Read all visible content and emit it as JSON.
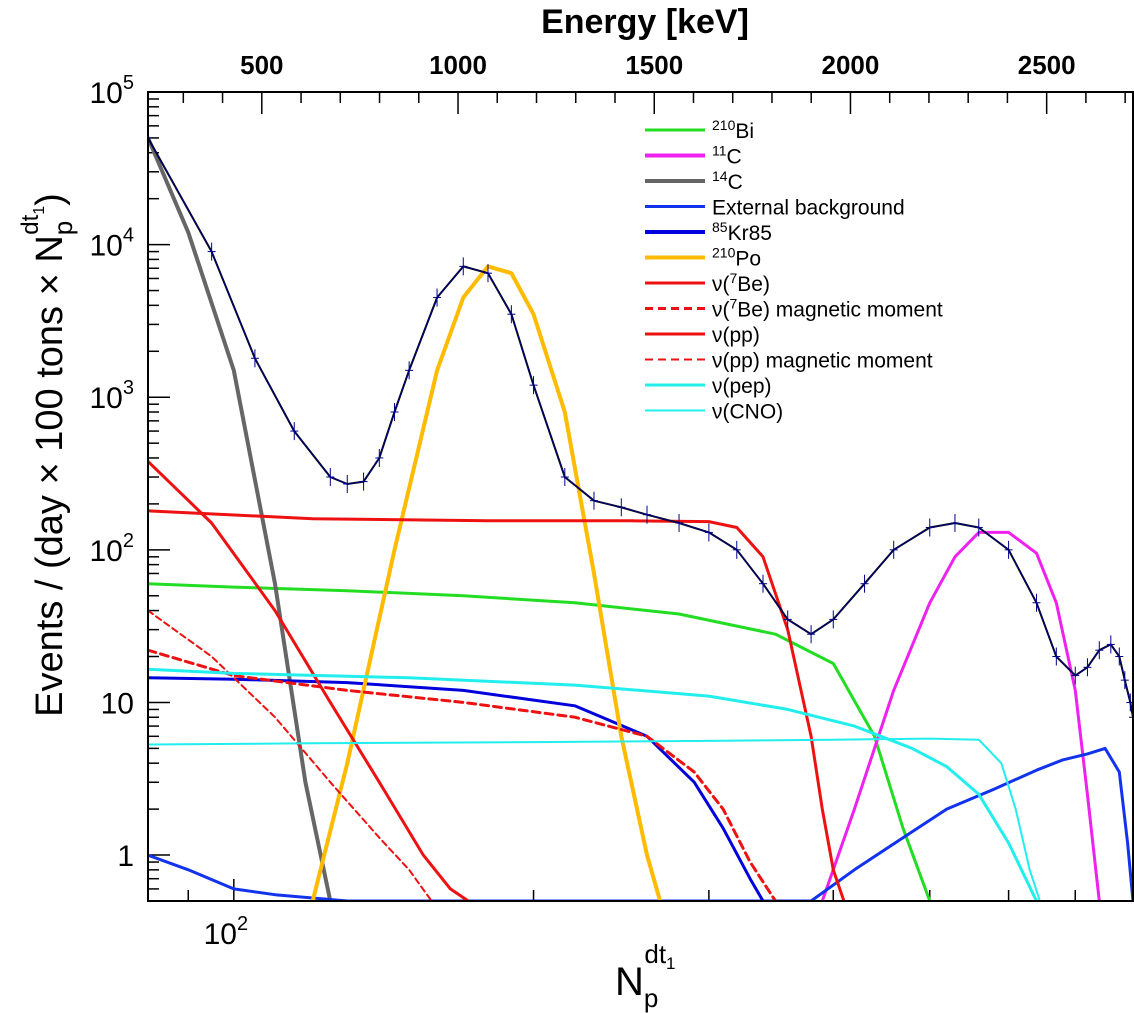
{
  "chart_data": {
    "type": "line",
    "title": "",
    "top_axis": {
      "label": "Energy [keV]",
      "ticks": [
        "500",
        "1000",
        "1500",
        "2000",
        "2500"
      ],
      "tick_values": [
        500,
        1000,
        1500,
        2000,
        2500
      ]
    },
    "xlabel": {
      "base": "N",
      "sub": "p",
      "sup": "dt",
      "supsub": "1"
    },
    "ylabel": {
      "main": "Events / (day × 100 tons × N",
      "sub": "p",
      "sup": "dt",
      "supsub": "1",
      "close": ")"
    },
    "x_scale": "log",
    "y_scale": "log",
    "xlim": [
      82,
      800
    ],
    "ylim": [
      0.5,
      100000
    ],
    "x_tick_labels": [
      {
        "base": "10",
        "exp": "2",
        "value": 100
      }
    ],
    "y_tick_labels": [
      {
        "text": "1",
        "value": 1
      },
      {
        "text": "10",
        "value": 10
      },
      {
        "base": "10",
        "exp": "2",
        "value": 100
      },
      {
        "base": "10",
        "exp": "3",
        "value": 1000
      },
      {
        "base": "10",
        "exp": "4",
        "value": 10000
      },
      {
        "base": "10",
        "exp": "5",
        "value": 100000
      }
    ],
    "legend_position": "top-right",
    "legend": [
      {
        "sup": "210",
        "text": "Bi",
        "color": "#22dd22",
        "style": "solid",
        "width": 3
      },
      {
        "sup": "11",
        "text": "C",
        "color": "#ee22ee",
        "style": "solid",
        "width": 4
      },
      {
        "sup": "14",
        "text": "C",
        "color": "#666666",
        "style": "solid",
        "width": 4
      },
      {
        "sup": "",
        "text": "External background",
        "color": "#1133ee",
        "style": "solid",
        "width": 3
      },
      {
        "sup": "85",
        "text": "Kr85",
        "color": "#0000dd",
        "style": "solid",
        "width": 4
      },
      {
        "sup": "210",
        "text": "Po",
        "color": "#ffbb00",
        "style": "solid",
        "width": 4
      },
      {
        "pre": "ν(",
        "sup": "7",
        "text": "Be)",
        "color": "#ee1111",
        "style": "solid",
        "width": 3
      },
      {
        "pre": "ν(",
        "sup": "7",
        "text": "Be) magnetic moment",
        "color": "#ee1111",
        "style": "dashed",
        "width": 3
      },
      {
        "pre": "",
        "sup": "",
        "text": "ν(pp)",
        "color": "#ee1111",
        "style": "solid",
        "width": 3
      },
      {
        "pre": "",
        "sup": "",
        "text": "ν(pp) magnetic moment",
        "color": "#ee1111",
        "style": "dashed",
        "width": 2
      },
      {
        "pre": "",
        "sup": "",
        "text": "ν(pep)",
        "color": "#22eeee",
        "style": "solid",
        "width": 3
      },
      {
        "pre": "",
        "sup": "",
        "text": "ν(CNO)",
        "color": "#22eeee",
        "style": "solid",
        "width": 2
      }
    ],
    "series": [
      {
        "name": "210Bi",
        "color": "#22dd22",
        "width": 3,
        "dash": "",
        "x": [
          82,
          100,
          130,
          170,
          220,
          280,
          350,
          400,
          440,
          470,
          500
        ],
        "y": [
          60,
          57,
          54,
          50,
          45,
          38,
          28,
          18,
          6,
          1.5,
          0.5
        ]
      },
      {
        "name": "11C",
        "color": "#ee22ee",
        "width": 3,
        "dash": "",
        "x": [
          390,
          420,
          460,
          500,
          530,
          560,
          600,
          640,
          670,
          700,
          720,
          740
        ],
        "y": [
          0.5,
          2,
          12,
          45,
          90,
          130,
          130,
          95,
          45,
          12,
          2.5,
          0.5
        ]
      },
      {
        "name": "14C",
        "color": "#666666",
        "width": 4,
        "dash": "",
        "x": [
          82,
          90,
          100,
          110,
          118,
          125
        ],
        "y": [
          50000,
          12000,
          1500,
          60,
          3,
          0.5
        ]
      },
      {
        "name": "External background",
        "color": "#1133ee",
        "width": 3,
        "dash": "",
        "x": [
          82,
          90,
          100,
          110,
          130,
          160,
          200,
          260,
          330,
          380,
          420,
          470,
          520,
          580,
          640,
          680,
          720,
          750,
          775,
          790,
          800
        ],
        "y": [
          1,
          0.8,
          0.6,
          0.55,
          0.5,
          0.5,
          0.5,
          0.5,
          0.5,
          0.5,
          0.8,
          1.3,
          2,
          2.7,
          3.6,
          4.2,
          4.6,
          5,
          3.5,
          1.2,
          0.5
        ]
      },
      {
        "name": "85Kr",
        "color": "#0000dd",
        "width": 3,
        "dash": "",
        "x": [
          82,
          100,
          130,
          170,
          220,
          260,
          290,
          310,
          330,
          340
        ],
        "y": [
          14.5,
          14.2,
          13.5,
          12,
          9.5,
          6,
          3,
          1.5,
          0.7,
          0.5
        ]
      },
      {
        "name": "210Po",
        "color": "#ffbb00",
        "width": 4,
        "dash": "",
        "x": [
          120,
          130,
          145,
          160,
          170,
          180,
          190,
          200,
          215,
          230,
          245,
          260,
          268
        ],
        "y": [
          0.5,
          4,
          100,
          1500,
          4500,
          7200,
          6500,
          3500,
          800,
          70,
          6,
          1,
          0.5
        ]
      },
      {
        "name": "nu 7Be",
        "color": "#ee1111",
        "width": 3,
        "dash": "",
        "x": [
          82,
          120,
          180,
          250,
          300,
          320,
          340,
          360,
          380,
          390,
          400,
          410
        ],
        "y": [
          180,
          160,
          155,
          155,
          153,
          140,
          90,
          30,
          6,
          2,
          0.8,
          0.5
        ]
      },
      {
        "name": "nu 7Be magnetic moment",
        "color": "#ee1111",
        "width": 3,
        "dash": "8,5",
        "x": [
          82,
          100,
          130,
          170,
          220,
          260,
          290,
          310,
          330,
          350
        ],
        "y": [
          22,
          15,
          12,
          10,
          8,
          6,
          3.5,
          2,
          0.9,
          0.5
        ]
      },
      {
        "name": "nu pp",
        "color": "#ee1111",
        "width": 3,
        "dash": "",
        "x": [
          82,
          95,
          110,
          125,
          140,
          155,
          165,
          172
        ],
        "y": [
          380,
          150,
          40,
          10,
          3,
          1,
          0.6,
          0.5
        ]
      },
      {
        "name": "nu pp magnetic moment",
        "color": "#ee1111",
        "width": 2,
        "dash": "6,4",
        "x": [
          82,
          95,
          110,
          125,
          140,
          150,
          158
        ],
        "y": [
          40,
          20,
          8,
          3,
          1.3,
          0.8,
          0.5
        ]
      },
      {
        "name": "nu pep",
        "color": "#22eeee",
        "width": 3,
        "dash": "",
        "x": [
          82,
          100,
          150,
          220,
          300,
          360,
          420,
          480,
          520,
          560,
          600,
          640
        ],
        "y": [
          16.5,
          15.5,
          14.5,
          13,
          11,
          9,
          7,
          5,
          3.8,
          2.5,
          1.2,
          0.5
        ]
      },
      {
        "name": "nu CNO",
        "color": "#22eeee",
        "width": 2,
        "dash": "",
        "x": [
          82,
          120,
          200,
          300,
          400,
          500,
          560,
          590,
          610,
          630,
          645
        ],
        "y": [
          5.3,
          5.4,
          5.5,
          5.6,
          5.7,
          5.8,
          5.7,
          4,
          2,
          0.8,
          0.5
        ]
      },
      {
        "name": "Total fit",
        "color": "#000000",
        "width": 2,
        "dash": "",
        "x": [
          82,
          95,
          105,
          115,
          125,
          130,
          135,
          140,
          145,
          150,
          160,
          170,
          180,
          190,
          200,
          215,
          230,
          245,
          260,
          280,
          300,
          320,
          340,
          360,
          380,
          400,
          430,
          460,
          500,
          530,
          560,
          600,
          640,
          670,
          700,
          720,
          740,
          760,
          775,
          785,
          795,
          800
        ],
        "y": [
          50000,
          9000,
          1800,
          600,
          300,
          270,
          280,
          400,
          800,
          1500,
          4500,
          7200,
          6500,
          3500,
          1200,
          300,
          210,
          190,
          170,
          150,
          130,
          100,
          60,
          35,
          28,
          35,
          60,
          100,
          140,
          150,
          140,
          100,
          45,
          20,
          15,
          17,
          22,
          24,
          20,
          14,
          10,
          8
        ]
      },
      {
        "name": "Data",
        "color": "#000088",
        "width": 1,
        "dash": "",
        "x": [
          82,
          95,
          105,
          115,
          125,
          130,
          135,
          140,
          145,
          150,
          160,
          170,
          180,
          190,
          200,
          215,
          230,
          245,
          260,
          280,
          300,
          320,
          340,
          360,
          380,
          400,
          430,
          460,
          500,
          530,
          560,
          600,
          640,
          670,
          700,
          720,
          740,
          760,
          775,
          785,
          795,
          800
        ],
        "y": [
          50000,
          9000,
          1800,
          600,
          300,
          270,
          280,
          400,
          800,
          1500,
          4500,
          7200,
          6500,
          3500,
          1200,
          300,
          210,
          190,
          170,
          150,
          130,
          100,
          60,
          35,
          28,
          35,
          60,
          100,
          140,
          150,
          140,
          100,
          45,
          20,
          15,
          17,
          22,
          24,
          20,
          14,
          10,
          8
        ]
      }
    ]
  }
}
